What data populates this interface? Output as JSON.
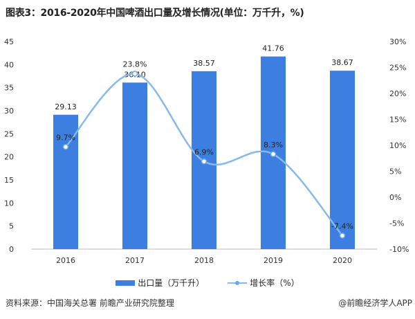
{
  "title": "图表3：2016-2020年中国啤酒出口量及增长情况(单位：万千升，%)",
  "chart_data": {
    "type": "bar+line",
    "categories": [
      "2016",
      "2017",
      "2018",
      "2019",
      "2020"
    ],
    "series": [
      {
        "name": "出口量（万千升）",
        "type": "bar",
        "axis": "left",
        "values": [
          29.13,
          36.1,
          38.57,
          41.76,
          38.67
        ],
        "labels": [
          "29.13",
          "36.10",
          "38.57",
          "41.76",
          "38.67"
        ],
        "color": "#3d7fe0"
      },
      {
        "name": "增长率（%）",
        "type": "line",
        "axis": "right",
        "smooth": true,
        "values": [
          9.7,
          23.8,
          6.9,
          8.3,
          -7.4
        ],
        "labels": [
          "9.7%",
          "23.8%",
          "6.9%",
          "8.3%",
          "-7.4%"
        ],
        "color": "#86b9ee"
      }
    ],
    "left_axis": {
      "range": [
        0,
        45
      ],
      "ticks": [
        "0",
        "5",
        "10",
        "15",
        "20",
        "25",
        "30",
        "35",
        "40",
        "45"
      ]
    },
    "right_axis": {
      "range": [
        -10,
        30
      ],
      "ticks": [
        "-10%",
        "-5%",
        "0%",
        "5%",
        "10%",
        "15%",
        "20%",
        "25%",
        "30%"
      ]
    },
    "grid": false,
    "legend": "bottom"
  },
  "footer": {
    "source": "资料来源：中国海关总署 前瞻产业研究院整理",
    "brand": "@前瞻经济学人APP"
  }
}
